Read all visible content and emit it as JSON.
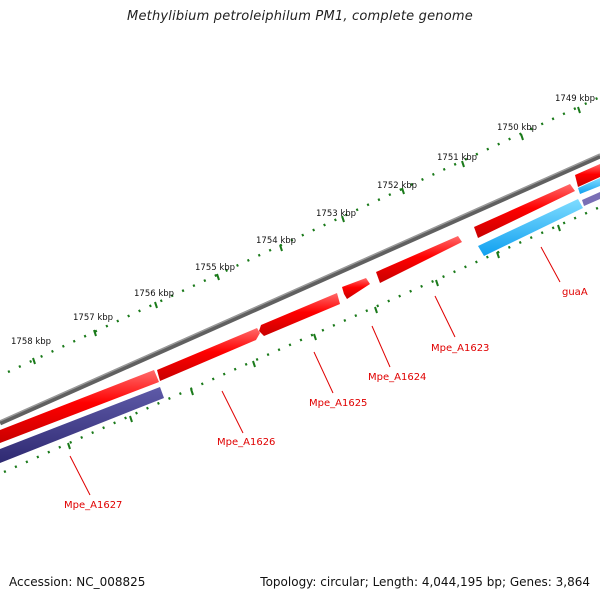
{
  "title": "Methylibium petroleiphilum PM1, complete genome",
  "footer": {
    "accession_label": "Accession:",
    "accession": "NC_008825",
    "topology_label": "Topology:",
    "topology": "circular;",
    "length_label": "Length:",
    "length": "4,044,195 bp;",
    "genes_label": "Genes:",
    "genes": "3,864"
  },
  "scale_labels": [
    "1749 kbp",
    "1750 kbp",
    "1751 kbp",
    "1752 kbp",
    "1753 kbp",
    "1754 kbp",
    "1755 kbp",
    "1756 kbp",
    "1757 kbp",
    "1758 kbp"
  ],
  "gene_labels": [
    "guaA",
    "Mpe_A1623",
    "Mpe_A1624",
    "Mpe_A1625",
    "Mpe_A1626",
    "Mpe_A1627"
  ],
  "colors": {
    "backbone": "#808080",
    "forward_gene": "#ff0000",
    "reverse_gene": "#3a3580",
    "cyan_gene": "#1ab0ff",
    "tick": "#1a7a1a",
    "label": "#e00000"
  }
}
